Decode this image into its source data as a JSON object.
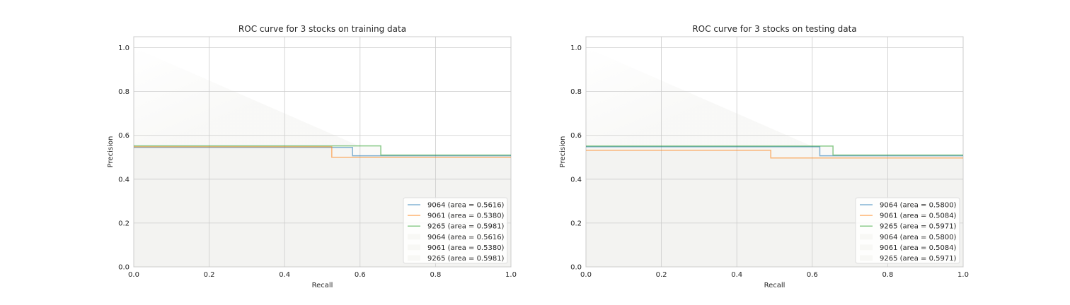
{
  "chart_data": [
    {
      "type": "line",
      "title": "ROC curve for 3 stocks on training data",
      "xlabel": "Recall",
      "ylabel": "Precision",
      "xlim": [
        0.0,
        1.0
      ],
      "ylim": [
        0.0,
        1.05
      ],
      "xticks": [
        "0.0",
        "0.2",
        "0.4",
        "0.6",
        "0.8",
        "1.0"
      ],
      "yticks": [
        "0.0",
        "0.2",
        "0.4",
        "0.6",
        "0.8",
        "1.0"
      ],
      "grid": true,
      "legend_position": "lower-right",
      "series": [
        {
          "name": "9064 (area = 0.5616)",
          "color": "#1f77b4",
          "x": [
            0.0,
            0.58,
            0.58,
            1.0
          ],
          "y": [
            0.545,
            0.545,
            0.507,
            0.507
          ]
        },
        {
          "name": "9061 (area = 0.5380)",
          "color": "#ff7f0e",
          "x": [
            0.0,
            0.525,
            0.525,
            1.0
          ],
          "y": [
            0.548,
            0.548,
            0.5,
            0.5
          ]
        },
        {
          "name": "9265 (area = 0.5981)",
          "color": "#2ca02c",
          "x": [
            0.0,
            0.655,
            0.655,
            1.0
          ],
          "y": [
            0.552,
            0.552,
            0.51,
            0.51
          ]
        }
      ],
      "fill_legend": [
        "9064 (area = 0.5616)",
        "9061 (area = 0.5380)",
        "9265 (area = 0.5981)"
      ]
    },
    {
      "type": "line",
      "title": "ROC curve for 3 stocks on testing data",
      "xlabel": "Recall",
      "ylabel": "Precision",
      "xlim": [
        0.0,
        1.0
      ],
      "ylim": [
        0.0,
        1.05
      ],
      "xticks": [
        "0.0",
        "0.2",
        "0.4",
        "0.6",
        "0.8",
        "1.0"
      ],
      "yticks": [
        "0.0",
        "0.2",
        "0.4",
        "0.6",
        "0.8",
        "1.0"
      ],
      "grid": true,
      "legend_position": "lower-right",
      "series": [
        {
          "name": "9064 (area = 0.5800)",
          "color": "#1f77b4",
          "x": [
            0.0,
            0.62,
            0.62,
            1.0
          ],
          "y": [
            0.548,
            0.548,
            0.507,
            0.507
          ]
        },
        {
          "name": "9061 (area = 0.5084)",
          "color": "#ff7f0e",
          "x": [
            0.0,
            0.49,
            0.49,
            1.0
          ],
          "y": [
            0.532,
            0.532,
            0.497,
            0.497
          ]
        },
        {
          "name": "9265 (area = 0.5971)",
          "color": "#2ca02c",
          "x": [
            0.0,
            0.655,
            0.655,
            1.0
          ],
          "y": [
            0.551,
            0.551,
            0.51,
            0.51
          ]
        }
      ],
      "fill_legend": [
        "9064 (area = 0.5800)",
        "9061 (area = 0.5084)",
        "9265 (area = 0.5971)"
      ]
    }
  ]
}
